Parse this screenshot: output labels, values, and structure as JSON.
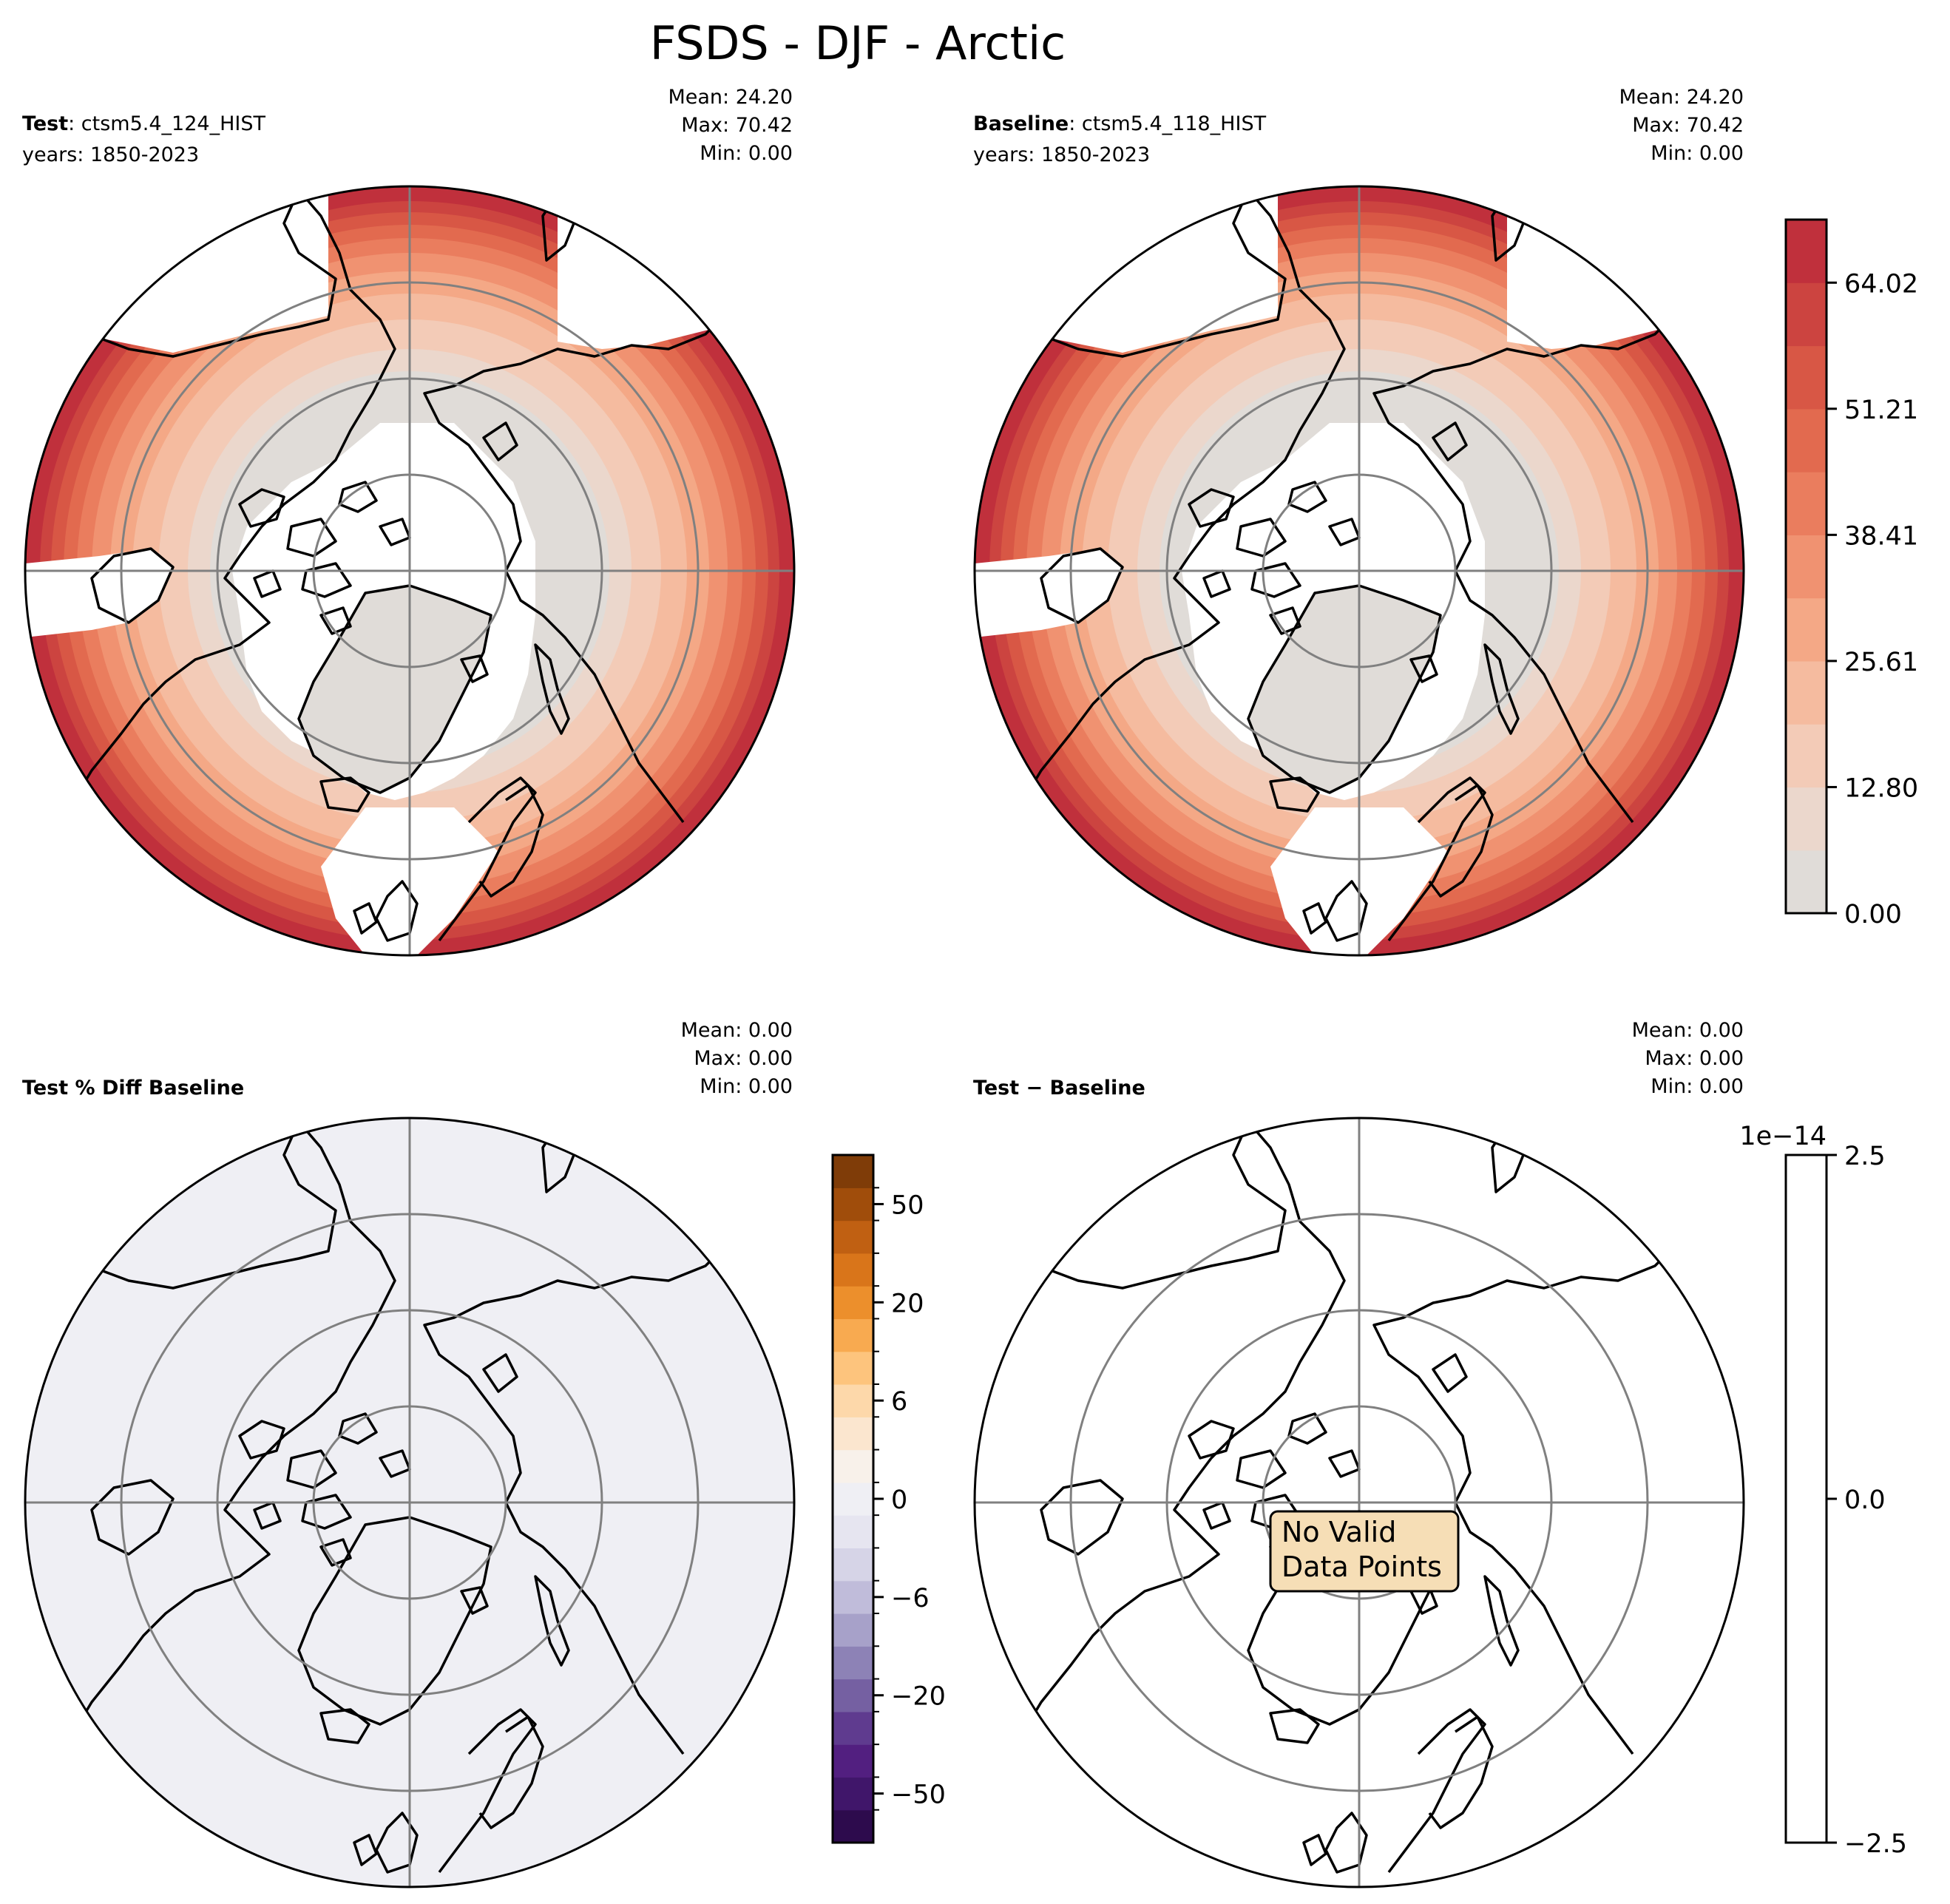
{
  "figure": {
    "title": "FSDS - DJF - Arctic"
  },
  "panels": [
    {
      "id": "test",
      "label_bold": "Test",
      "label_rest": ": ctsm5.4_124_HIST",
      "years": "years: 1850-2023",
      "stats": [
        "Mean: 24.20",
        "Max: 70.42",
        "Min:  0.00"
      ]
    },
    {
      "id": "baseline",
      "label_bold": "Baseline",
      "label_rest": ": ctsm5.4_118_HIST",
      "years": "years: 1850-2023",
      "stats": [
        "Mean: 24.20",
        "Max: 70.42",
        "Min:  0.00"
      ]
    },
    {
      "id": "pctdiff",
      "label_bold": "Test % Diff Baseline",
      "label_rest": "",
      "years": "",
      "stats": [
        "Mean:  0.00",
        "Max:  0.00",
        "Min:  0.00"
      ]
    },
    {
      "id": "diff",
      "label_bold": "Test − Baseline",
      "label_rest": "",
      "years": "",
      "stats": [
        "Mean:  0.00",
        "Max:  0.00",
        "Min:  0.00"
      ],
      "message": [
        "No Valid",
        "Data Points"
      ]
    }
  ],
  "colorbars": {
    "main": {
      "ticks": [
        "0.00",
        "12.80",
        "25.61",
        "38.41",
        "51.21",
        "64.02"
      ],
      "colors": [
        "#e0dcd8",
        "#ebd7cc",
        "#f3cbb7",
        "#f5bb9f",
        "#f4a886",
        "#f09271",
        "#ea7d5e",
        "#e26a4f",
        "#d85745",
        "#cc4440",
        "#c0303c"
      ]
    },
    "pct": {
      "ticks": [
        "-50",
        "-20",
        "-6",
        "0",
        "6",
        "20",
        "50"
      ],
      "tick_labels": [
        "−50",
        "−20",
        "−6",
        "0",
        "6",
        "20",
        "50"
      ],
      "colors": [
        "#2d0b4d",
        "#40166a",
        "#521f80",
        "#5f3b8f",
        "#7560a2",
        "#8d82b6",
        "#a7a1c9",
        "#c0bcda",
        "#d6d4e7",
        "#e6e5f0",
        "#efeff4",
        "#f8f1ea",
        "#fbe6cf",
        "#fdd8aa",
        "#fdc47d",
        "#f8aa50",
        "#ec8f2c",
        "#d9751a",
        "#c06012",
        "#a04d0b",
        "#7f3c08"
      ]
    },
    "diff": {
      "ticks": [
        "2.5",
        "0.0",
        "−2.5"
      ],
      "offset": "1e−14"
    }
  },
  "colors": {
    "land_fill": "#f0f0f3",
    "ocean": "#ffffff",
    "grid": "#808080",
    "message_bg": "#f6deb6"
  }
}
